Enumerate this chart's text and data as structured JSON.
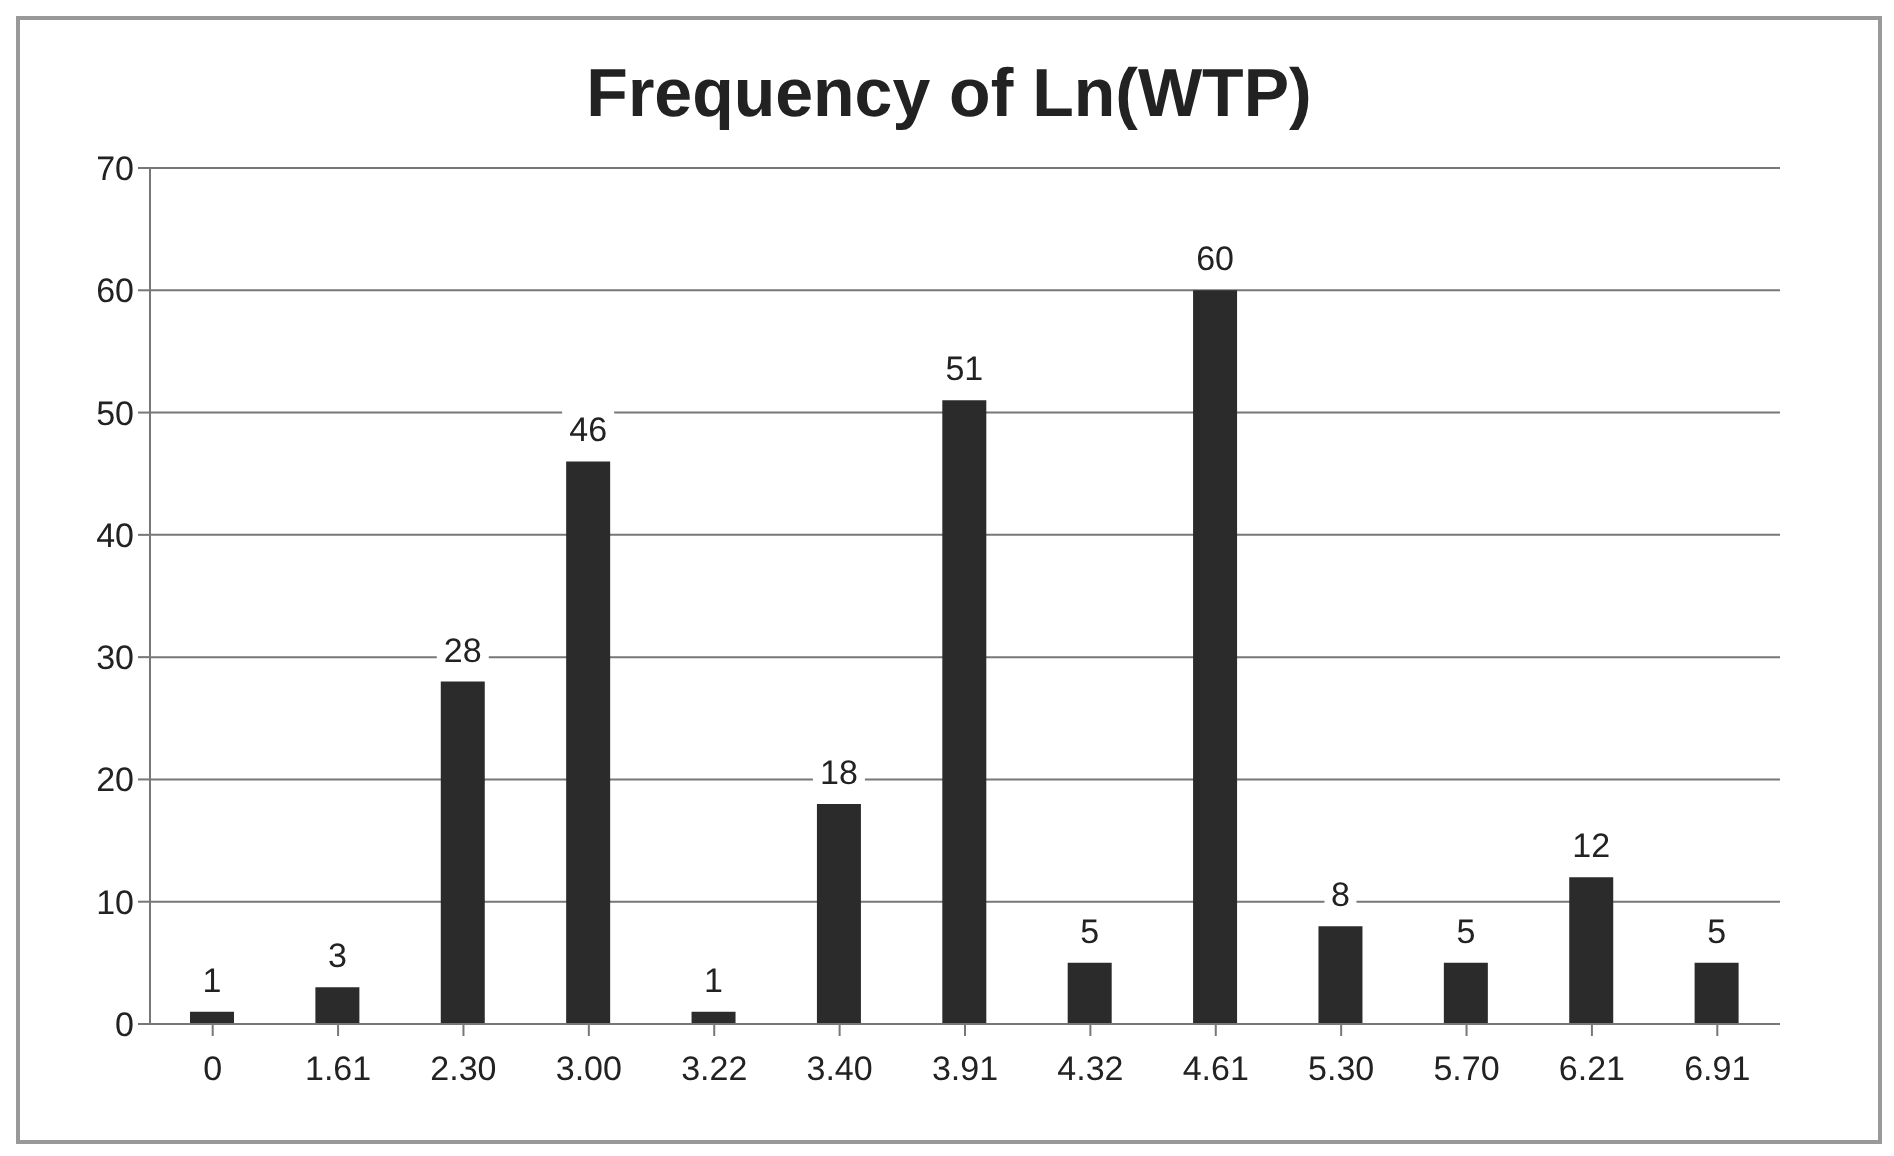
{
  "chart_data": {
    "type": "bar",
    "title": "Frequency of Ln(WTP)",
    "categories": [
      "0",
      "1.61",
      "2.30",
      "3.00",
      "3.22",
      "3.40",
      "3.91",
      "4.32",
      "4.61",
      "5.30",
      "5.70",
      "6.21",
      "6.91"
    ],
    "values": [
      1,
      3,
      28,
      46,
      1,
      18,
      51,
      5,
      60,
      8,
      5,
      12,
      5
    ],
    "color": "#2b2b2b",
    "ylim": [
      0,
      70
    ],
    "yticks": [
      0,
      10,
      20,
      30,
      40,
      50,
      60,
      70
    ],
    "grid": "y",
    "data_labels": true
  }
}
